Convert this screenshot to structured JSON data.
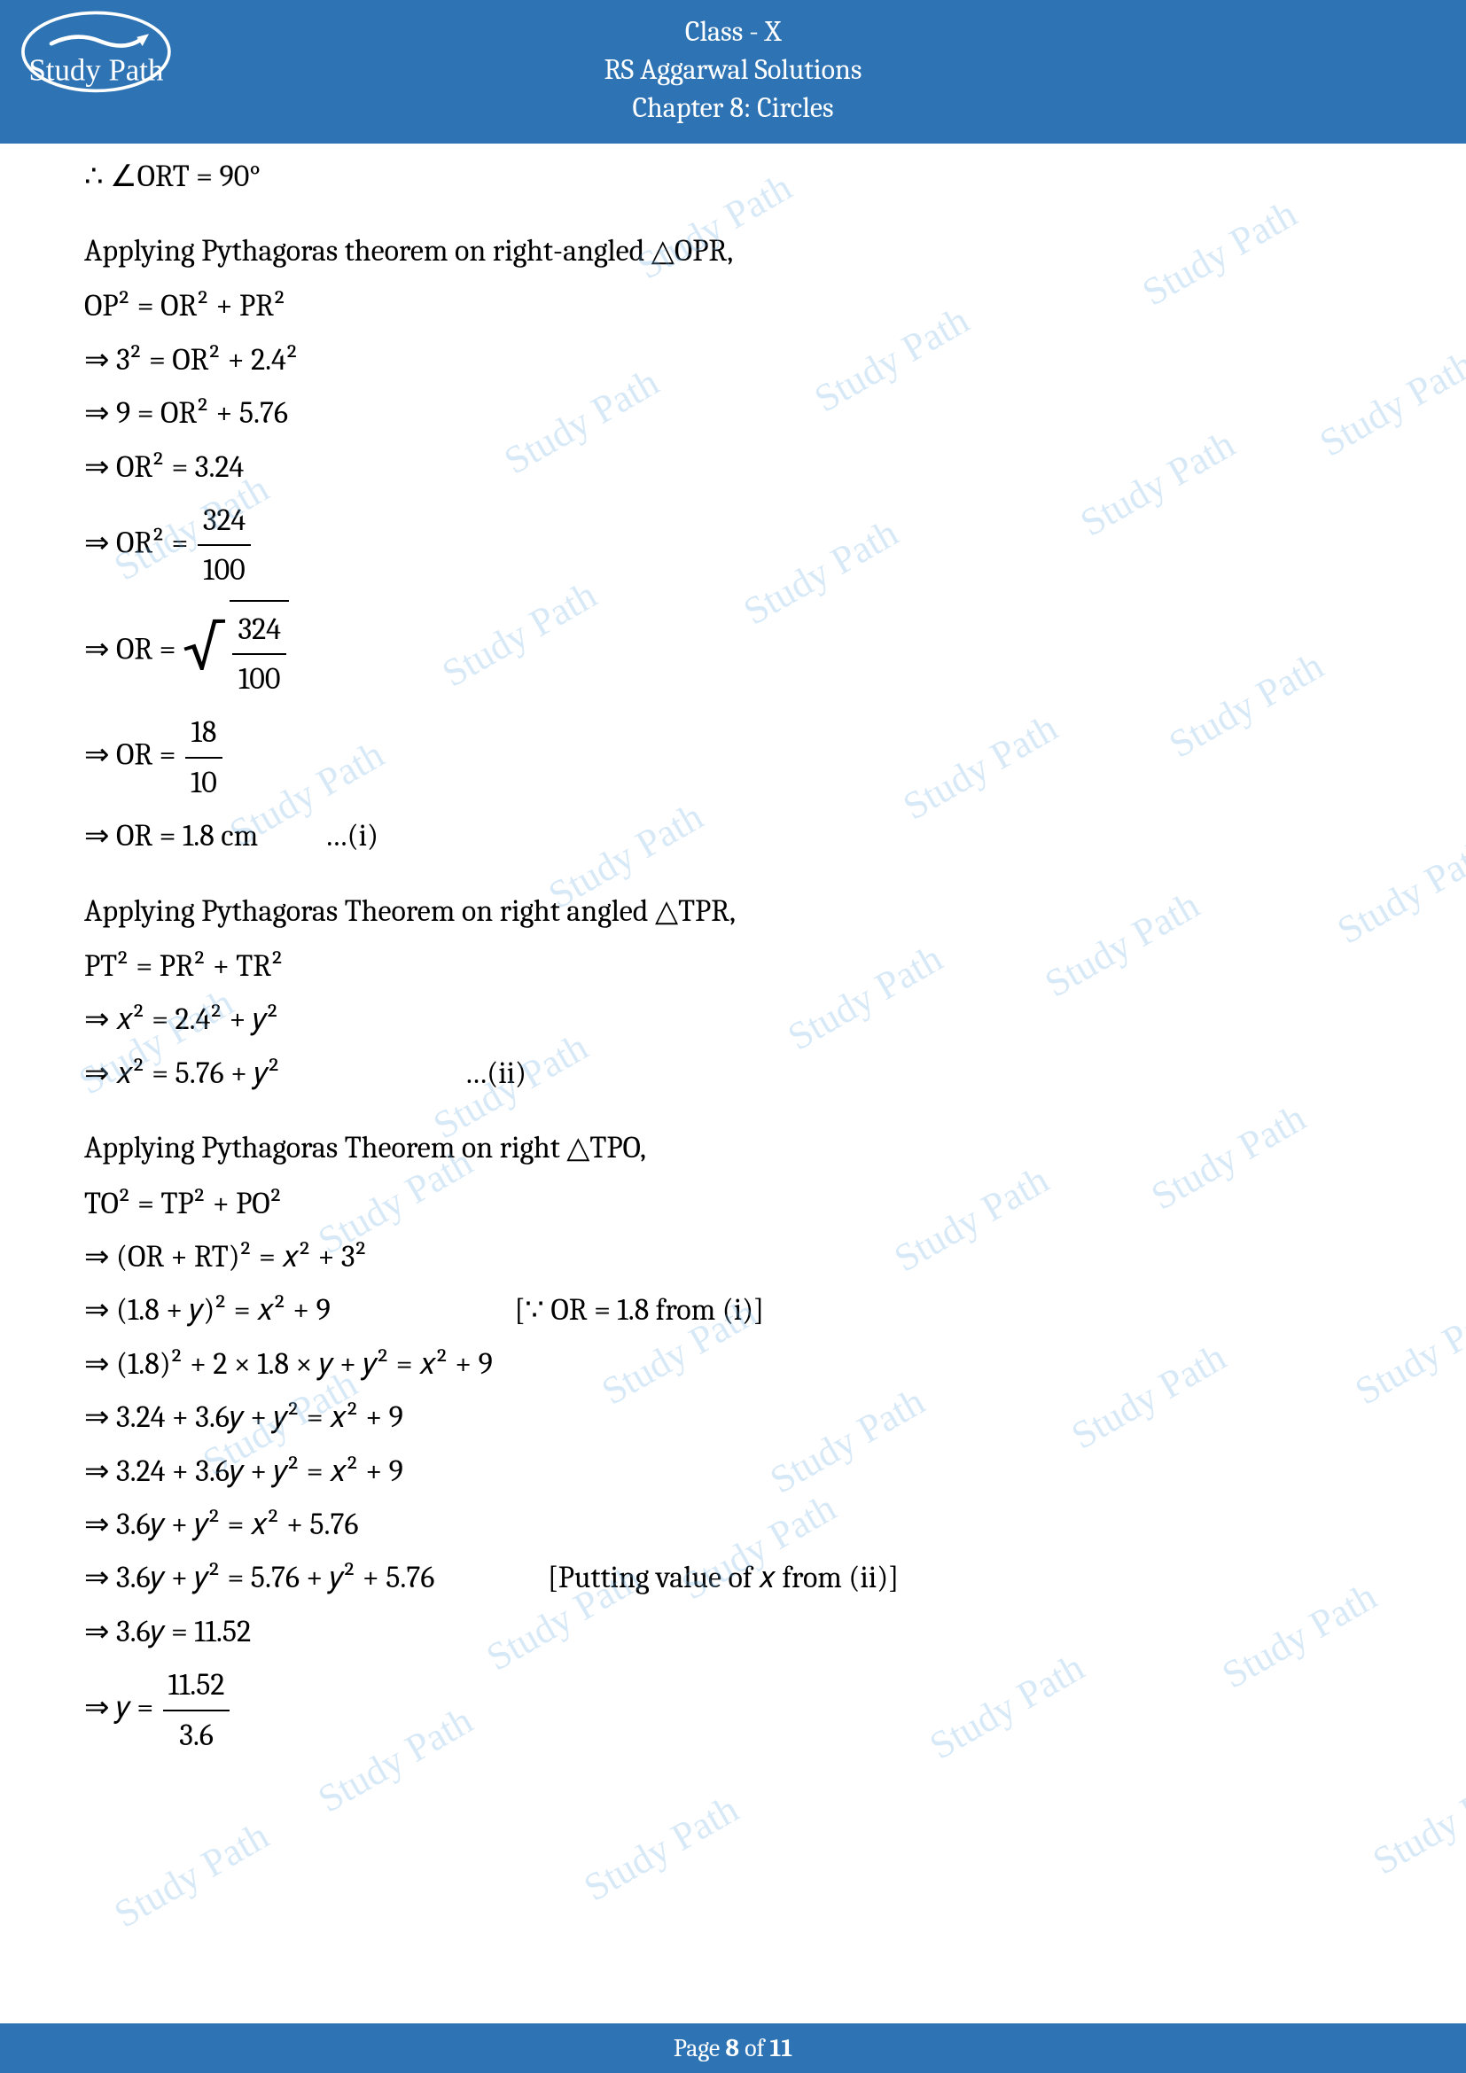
{
  "header": {
    "line1": "Class - X",
    "line2": "RS Aggarwal Solutions",
    "line3": "Chapter 8: Circles",
    "logo_text": "Study Path"
  },
  "eq": {
    "l1": "∴ ∠ORT = 90°",
    "p1": "Applying Pythagoras theorem on right-angled △OPR,",
    "l2": "OP² = OR² + PR²",
    "l3": "⇒ 3² = OR² + 2.4²",
    "l4": "⇒ 9 = OR² + 5.76",
    "l5": "⇒ OR² = 3.24",
    "l6a": "⇒ OR² = ",
    "l6_num": "324",
    "l6_den": "100",
    "l7a": "⇒ OR = ",
    "l7_num": "324",
    "l7_den": "100",
    "l8a": "⇒ OR = ",
    "l8_num": "18",
    "l8_den": "10",
    "l9": "⇒ OR = 1.8 cm          …(i)",
    "p2": "Applying Pythagoras Theorem on right angled △TPR,",
    "l10": "PT² = PR² + TR²",
    "l11": "⇒ 𝑥² = 2.4² + 𝑦²",
    "l12": "⇒ 𝑥² = 5.76 + 𝑦²",
    "l12_note": "…(ii)",
    "p3": "Applying Pythagoras Theorem on right △TPO,",
    "l13": "TO² = TP² + PO²",
    "l14": "⇒ (OR + RT)² = 𝑥² + 3²",
    "l15": "⇒ (1.8 + 𝑦)² = 𝑥² + 9",
    "l15_note": "[∵ OR = 1.8 from (i)]",
    "l16": "⇒ (1.8)² + 2 × 1.8 × 𝑦 + 𝑦² = 𝑥² + 9",
    "l17": "⇒ 3.24 + 3.6𝑦 + 𝑦² = 𝑥² + 9",
    "l18": "⇒ 3.24 + 3.6𝑦 + 𝑦² = 𝑥² + 9",
    "l19": "⇒ 3.6𝑦 + 𝑦² = 𝑥² + 5.76",
    "l20": "⇒ 3.6𝑦 + 𝑦² = 5.76 + 𝑦² + 5.76",
    "l20_note": "[Putting value of 𝑥 from (ii)]",
    "l21": "⇒ 3.6𝑦 = 11.52",
    "l22a": "⇒ 𝑦 = ",
    "l22_num": "11.52",
    "l22_den": "3.6"
  },
  "footer": {
    "prefix": "Page ",
    "current": "8",
    "mid": " of ",
    "total": "11"
  },
  "watermark_text": "Study Path",
  "colors": {
    "accent": "#2e74b5",
    "text": "#000000",
    "watermark": "rgba(110,175,225,0.28)"
  }
}
